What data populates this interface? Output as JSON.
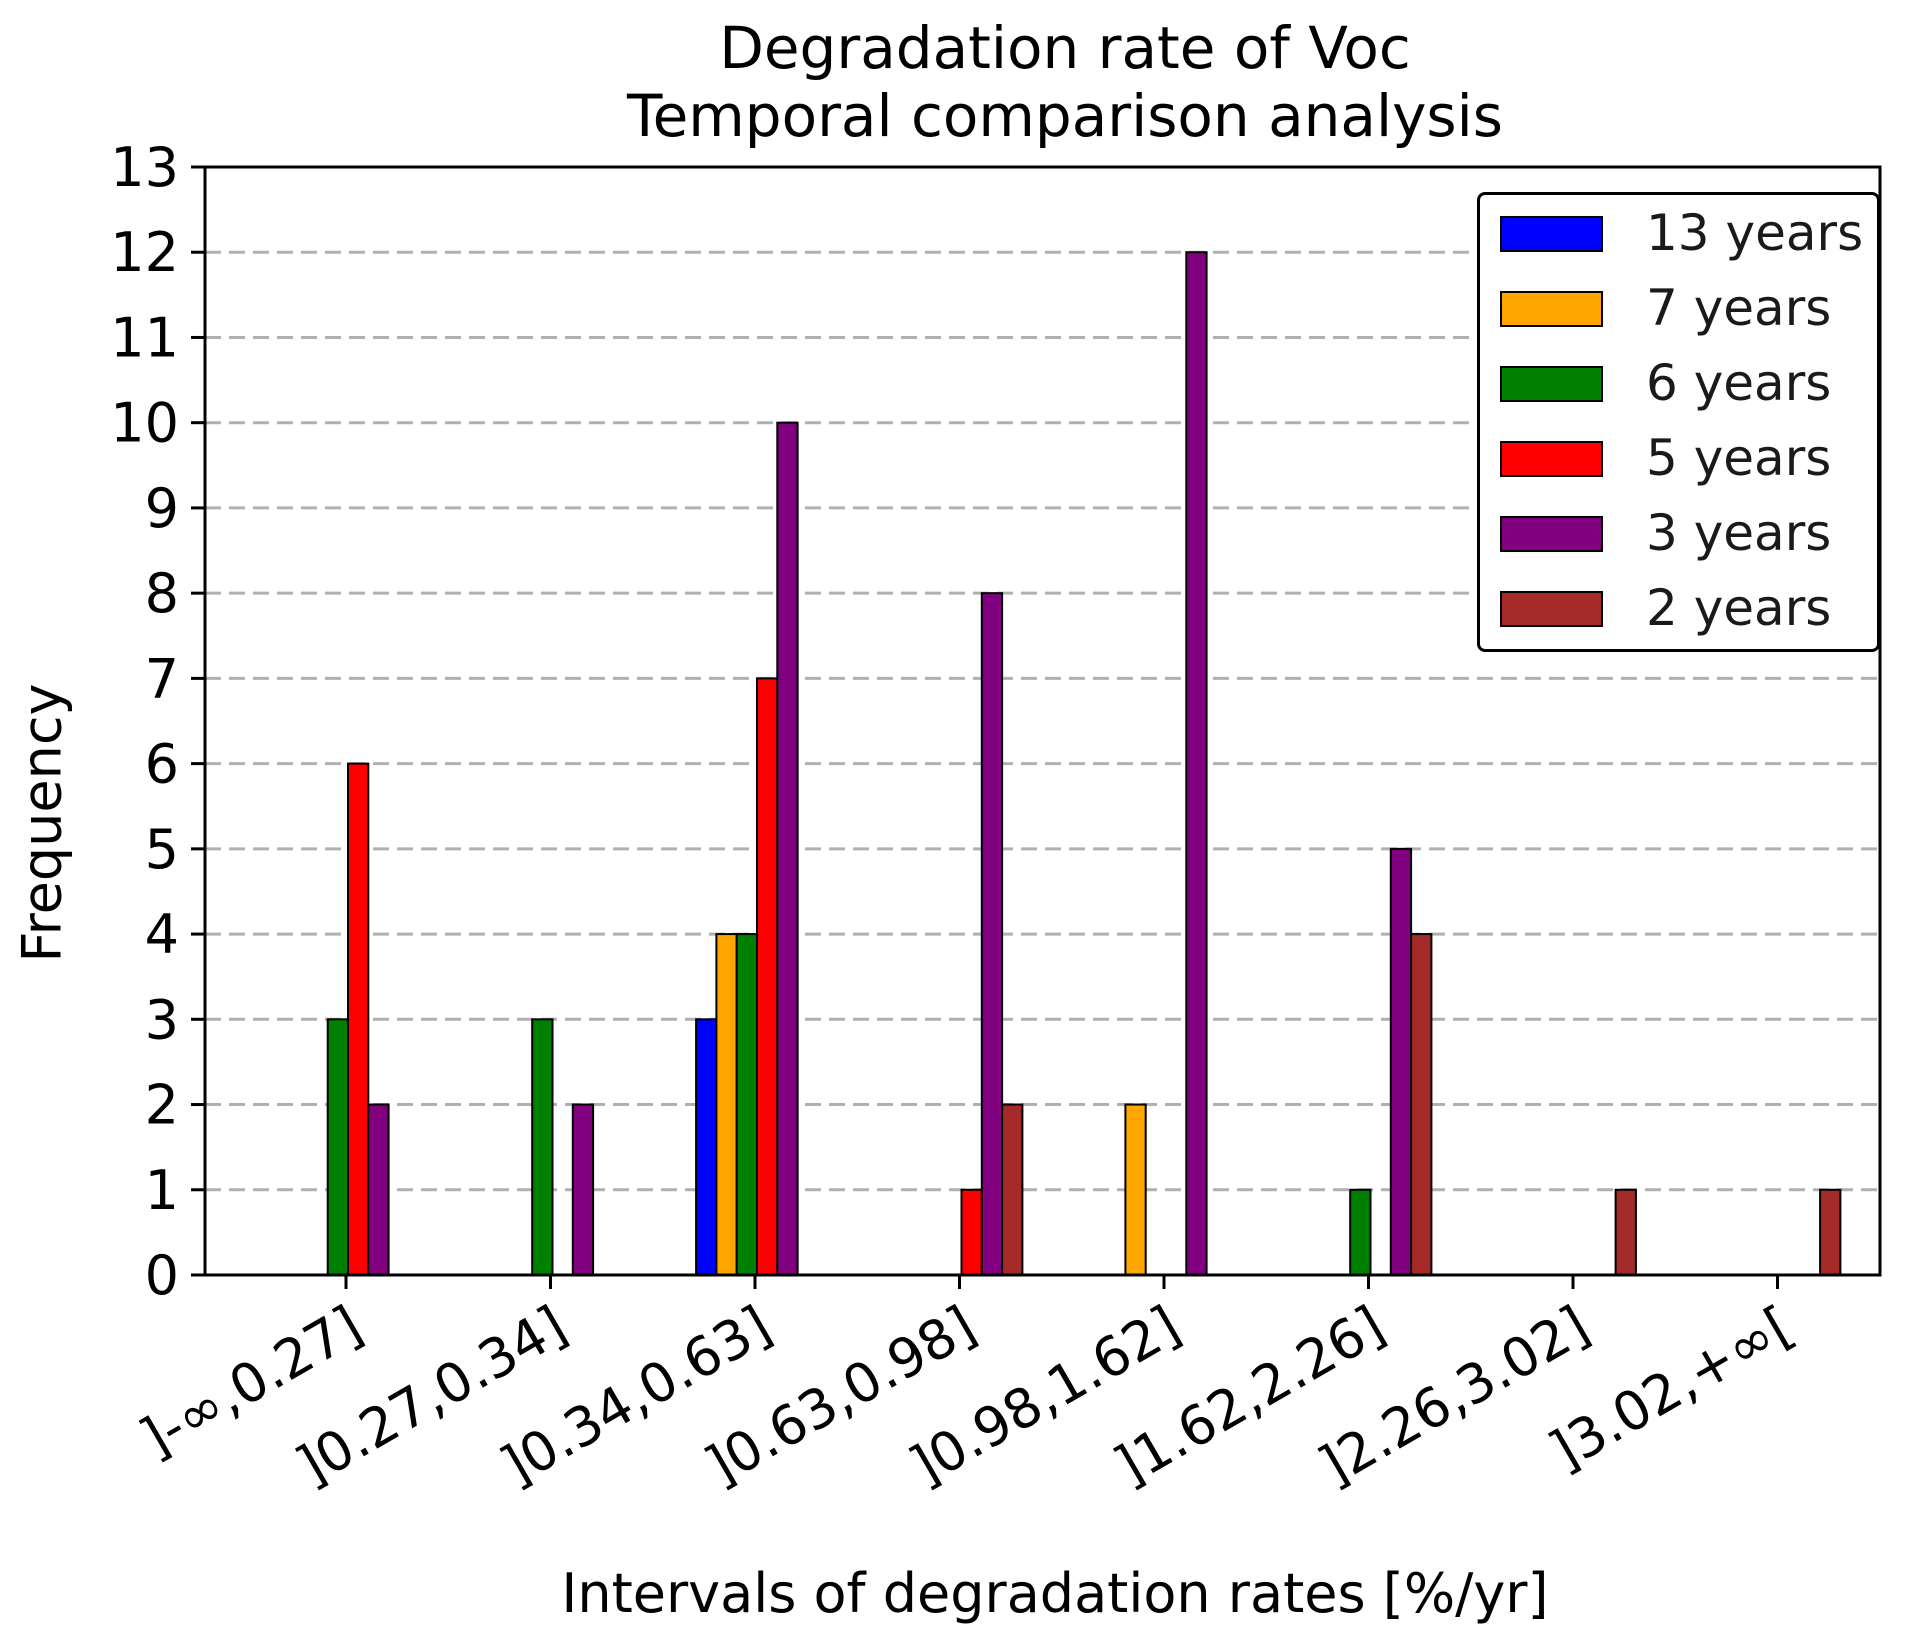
{
  "chart_data": {
    "type": "bar",
    "title": [
      "Degradation rate of Voc",
      "Temporal comparison analysis"
    ],
    "xlabel": "Intervals of degradation rates [%/yr]",
    "ylabel": "Frequency",
    "ylim": [
      0,
      13
    ],
    "yticks": [
      0,
      1,
      2,
      3,
      4,
      5,
      6,
      7,
      8,
      9,
      10,
      11,
      12,
      13
    ],
    "grid": "horizontal dashed",
    "legend_position": "top-right",
    "categories": [
      "]-∞,0.27]",
      "]0.27,0.34]",
      "]0.34,0.63]",
      "]0.63,0.98]",
      "]0.98,1.62]",
      "]1.62,2.26]",
      "]2.26,3.02]",
      "]3.02,+∞["
    ],
    "series": [
      {
        "name": "13 years",
        "color": "#0000ff",
        "values": [
          0,
          0,
          3,
          0,
          0,
          0,
          0,
          0
        ]
      },
      {
        "name": "7 years",
        "color": "#ffa500",
        "values": [
          0,
          0,
          4,
          0,
          2,
          0,
          0,
          0
        ]
      },
      {
        "name": "6 years",
        "color": "#008000",
        "values": [
          3,
          3,
          4,
          0,
          0,
          1,
          0,
          0
        ]
      },
      {
        "name": "5 years",
        "color": "#ff0000",
        "values": [
          6,
          0,
          7,
          1,
          0,
          0,
          0,
          0
        ]
      },
      {
        "name": "3 years",
        "color": "#800080",
        "values": [
          2,
          2,
          10,
          8,
          12,
          5,
          0,
          0
        ]
      },
      {
        "name": "2 years",
        "color": "#a52a2a",
        "values": [
          0,
          0,
          0,
          2,
          0,
          4,
          1,
          1
        ]
      }
    ]
  }
}
